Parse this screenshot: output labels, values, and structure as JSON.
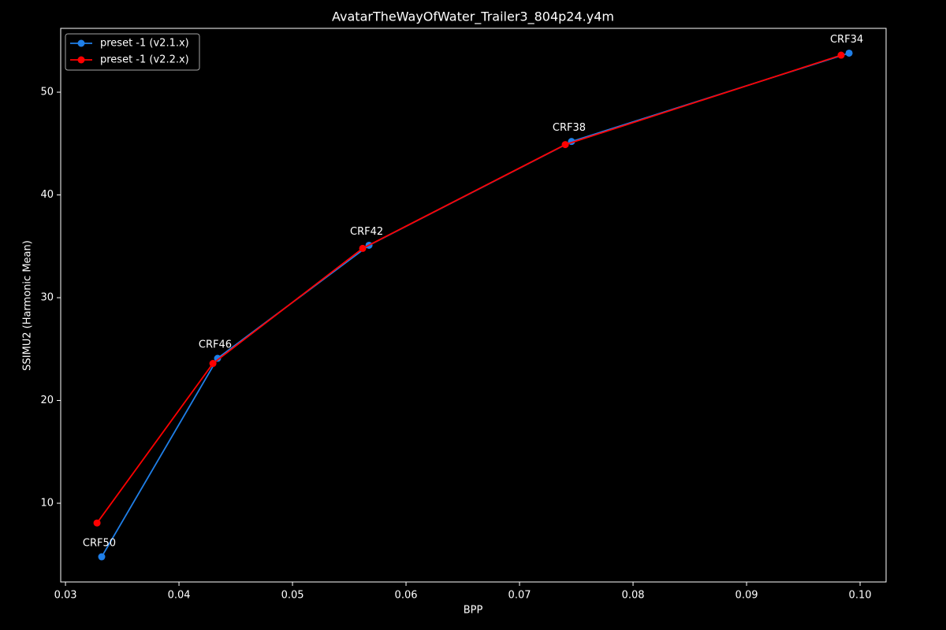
{
  "chart_data": {
    "type": "line",
    "title": "AvatarTheWayOfWater_Trailer3_804p24.y4m",
    "x_label": "BPP",
    "y_label": "SSIMU2 (Harmonic Mean)",
    "xlim": [
      0.02958,
      0.10229
    ],
    "ylim": [
      2.34,
      56.21
    ],
    "xticks": [
      0.03,
      0.04,
      0.05,
      0.06,
      0.07,
      0.08,
      0.09,
      {
        "value": 0.1,
        "label": "0.10"
      }
    ],
    "yticks": [
      10,
      20,
      30,
      40,
      50
    ],
    "legend": "upper left",
    "series": [
      {
        "name": "preset -1 (v2.1.x)",
        "color": "#1f7fe8",
        "x": [
          0.03319,
          0.0434,
          0.05674,
          0.07458,
          0.09903
        ],
        "values": [
          4.79,
          24.1,
          35.1,
          45.2,
          53.8
        ]
      },
      {
        "name": "preset -1 (v2.2.x)",
        "color": "#ff0000",
        "x": [
          0.03278,
          0.04299,
          0.05618,
          0.07403,
          0.09833
        ],
        "values": [
          8.08,
          23.6,
          34.8,
          44.9,
          53.6
        ]
      }
    ],
    "annotations": [
      "CRF50",
      "CRF46",
      "CRF42",
      "CRF38",
      "CRF34"
    ]
  }
}
